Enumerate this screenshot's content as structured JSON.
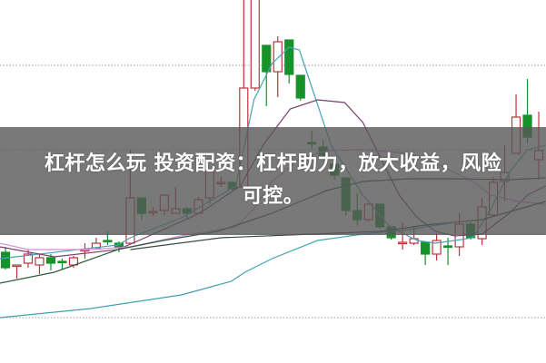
{
  "chart_data": {
    "type": "candlestick",
    "title": "",
    "grid": "horizontal-dotted",
    "colors": {
      "up": "#c0323c",
      "down": "#17922a",
      "grid": "#9a9a9a"
    },
    "candles": [
      [
        12.2,
        10.5,
        12.8,
        10.3
      ],
      [
        10.7,
        10.8,
        10.8,
        9.3
      ],
      [
        11.0,
        12.0,
        12.5,
        10.5
      ],
      [
        10.8,
        11.6,
        12.0,
        9.8
      ],
      [
        11.6,
        11.0,
        12.0,
        10.2
      ],
      [
        11.2,
        11.1,
        11.5,
        10.3
      ],
      [
        10.8,
        11.6,
        11.8,
        10.5
      ],
      [
        12.4,
        12.5,
        13.2,
        11.5
      ],
      [
        12.7,
        13.2,
        13.8,
        12.5
      ],
      [
        13.5,
        13.4,
        14.5,
        13.0
      ],
      [
        13.2,
        12.7,
        13.4,
        12.2
      ],
      [
        13.2,
        18.2,
        23.5,
        13.2
      ],
      [
        18.2,
        16.5,
        18.2,
        15.8
      ],
      [
        16.6,
        16.7,
        17.2,
        16.2
      ],
      [
        16.8,
        18.5,
        18.5,
        16.3
      ],
      [
        16.5,
        17.0,
        19.4,
        16.5
      ],
      [
        17.0,
        16.5,
        17.2,
        15.8
      ],
      [
        16.5,
        18.0,
        18.3,
        16.5
      ],
      [
        18.2,
        21.2,
        21.2,
        17.5
      ],
      [
        19.8,
        19.9,
        20.5,
        19.4
      ],
      [
        19.9,
        19.2,
        20.0,
        19.0
      ],
      [
        19.4,
        30.3,
        40.0,
        19.4
      ],
      [
        30.3,
        41.0,
        42.0,
        30.0
      ],
      [
        35.0,
        32.1,
        35.0,
        28.3
      ],
      [
        32.1,
        35.4,
        36.0,
        29.3
      ],
      [
        35.6,
        31.8,
        35.6,
        30.8
      ],
      [
        31.7,
        29.2,
        31.7,
        28.9
      ],
      [
        24.3,
        24.2,
        25.6,
        23.6
      ],
      [
        23.8,
        22.9,
        24.6,
        22.6
      ],
      [
        21.9,
        20.7,
        22.2,
        20.2
      ],
      [
        20.4,
        16.8,
        20.4,
        16.3
      ],
      [
        16.8,
        15.8,
        18.7,
        15.2
      ],
      [
        15.8,
        17.5,
        17.6,
        15.6
      ],
      [
        17.5,
        15.0,
        17.5,
        14.8
      ],
      [
        15.0,
        13.8,
        15.0,
        13.6
      ],
      [
        13.2,
        13.3,
        15.5,
        12.5
      ],
      [
        13.2,
        13.7,
        15.0,
        13.0
      ],
      [
        13.3,
        12.0,
        13.3,
        10.8
      ],
      [
        12.0,
        13.5,
        14.3,
        11.3
      ],
      [
        12.9,
        12.8,
        13.8,
        10.8
      ],
      [
        12.8,
        15.3,
        16.5,
        11.8
      ],
      [
        15.3,
        13.8,
        15.5,
        13.6
      ],
      [
        13.7,
        17.2,
        18.2,
        13.0
      ],
      [
        16.3,
        19.9,
        20.5,
        16.2
      ],
      [
        20.0,
        21.0,
        24.0,
        17.8
      ],
      [
        23.1,
        27.1,
        29.6,
        23.1
      ],
      [
        27.3,
        24.9,
        31.3,
        24.2
      ],
      [
        22.4,
        23.4,
        27.7,
        20.2
      ]
    ],
    "moving_averages": [
      {
        "color": "#4aa3b5",
        "points": [
          [
            0.5,
            11.5
          ],
          [
            10.9,
            13
          ],
          [
            12,
            13.8
          ],
          [
            16.5,
            16
          ],
          [
            21.3,
            19.5
          ],
          [
            22.9,
            29
          ],
          [
            24.5,
            33
          ],
          [
            26,
            34.8
          ],
          [
            26.9,
            34.5
          ],
          [
            28.1,
            30
          ],
          [
            29.7,
            24
          ],
          [
            32.5,
            18.5
          ],
          [
            34.9,
            15
          ],
          [
            37.3,
            13.5
          ],
          [
            38.9,
            13.2
          ],
          [
            40.6,
            13.5
          ],
          [
            42.2,
            13.8
          ],
          [
            43.8,
            17
          ],
          [
            45.4,
            21
          ],
          [
            47,
            23.5
          ],
          [
            48.6,
            24
          ]
        ]
      },
      {
        "color": "#7a3f6e",
        "points": [
          [
            0.5,
            12.8
          ],
          [
            5.3,
            11.7
          ],
          [
            10.9,
            12.5
          ],
          [
            13.3,
            13.8
          ],
          [
            18.1,
            16.5
          ],
          [
            21.7,
            19.5
          ],
          [
            23.7,
            24
          ],
          [
            26.1,
            28
          ],
          [
            28.5,
            29
          ],
          [
            30.9,
            28.7
          ],
          [
            32.5,
            26.5
          ],
          [
            34.1,
            22.5
          ],
          [
            35.7,
            18.5
          ],
          [
            37.3,
            16
          ],
          [
            38.9,
            14.5
          ],
          [
            40.6,
            14
          ],
          [
            43,
            14.2
          ],
          [
            45.4,
            16.5
          ],
          [
            47,
            18.5
          ],
          [
            48.6,
            19.5
          ]
        ]
      },
      {
        "color": "#d98ad6",
        "points": [
          [
            0.5,
            13.2
          ],
          [
            3,
            12.5
          ],
          [
            8.5,
            12.5
          ],
          [
            12,
            12.8
          ],
          [
            16.5,
            14
          ],
          [
            21.3,
            15
          ],
          [
            22.9,
            17
          ],
          [
            24.5,
            20
          ],
          [
            26.9,
            22.5
          ],
          [
            29.3,
            23.4
          ],
          [
            32.5,
            23.5
          ],
          [
            35.7,
            23.2
          ],
          [
            38.1,
            22.5
          ],
          [
            42.2,
            20
          ],
          [
            43.8,
            18.5
          ],
          [
            46.2,
            17.8
          ],
          [
            48.6,
            17.5
          ]
        ]
      },
      {
        "color": "#2f5a3a",
        "points": [
          [
            0.5,
            8.8
          ],
          [
            5.3,
            10
          ],
          [
            10.9,
            12.5
          ],
          [
            14.9,
            13.5
          ],
          [
            19.7,
            14.5
          ],
          [
            24.5,
            16.5
          ],
          [
            29.3,
            19
          ],
          [
            32.5,
            20
          ],
          [
            36.5,
            20.3
          ],
          [
            40.6,
            20.3
          ],
          [
            45.4,
            20.2
          ],
          [
            48.6,
            20.4
          ]
        ]
      },
      {
        "color": "#3a4a44",
        "points": [
          [
            12,
            12.5
          ],
          [
            20,
            13.8
          ],
          [
            28,
            14.2
          ],
          [
            34,
            14.5
          ],
          [
            38,
            15.2
          ],
          [
            43,
            15.8
          ],
          [
            48.6,
            17.8
          ]
        ]
      },
      {
        "color": "#3f9fb0",
        "points": [
          [
            0.5,
            5
          ],
          [
            8.5,
            6
          ],
          [
            16.5,
            7.5
          ],
          [
            20.9,
            9
          ],
          [
            22.1,
            10
          ],
          [
            24.5,
            11.5
          ],
          [
            28.5,
            13.5
          ],
          [
            32.5,
            14.2
          ],
          [
            36.5,
            14.7
          ],
          [
            40.6,
            15.5
          ]
        ]
      }
    ],
    "gridlines": [
      32.8,
      23.5,
      14.2,
      5.0
    ]
  },
  "overlay": {
    "title_line1": "杠杆怎么玩 投资配资：杠杆助力，放大收益，风险",
    "title_line2": "可控。"
  }
}
